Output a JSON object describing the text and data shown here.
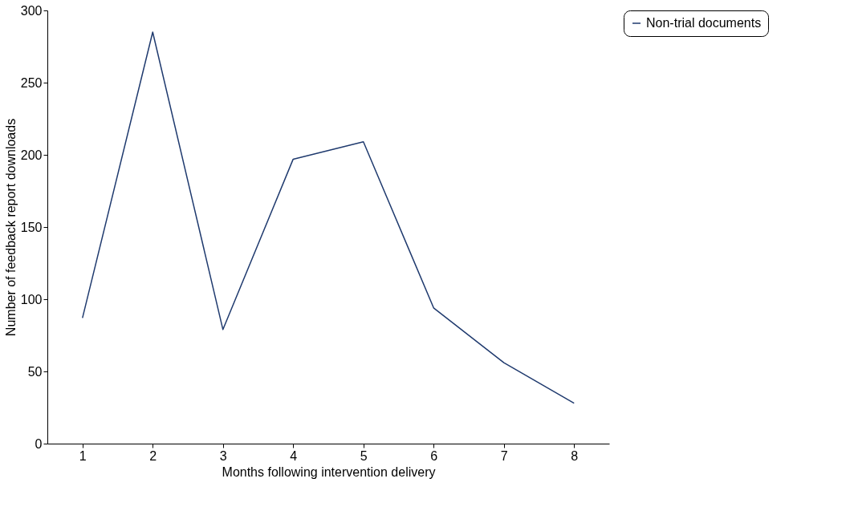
{
  "chart_data": {
    "type": "line",
    "xlabel": "Months following intervention delivery",
    "ylabel": "Number of feedback report downloads",
    "categories": [
      "1",
      "2",
      "3",
      "4",
      "5",
      "6",
      "7",
      "8"
    ],
    "series": [
      {
        "name": "Non-trial documents",
        "color": "#1f3a6e",
        "values": [
          87,
          285,
          79,
          197,
          209,
          94,
          56,
          28
        ]
      }
    ],
    "ylim": [
      0,
      300
    ],
    "yticks": [
      0,
      50,
      100,
      150,
      200,
      250,
      300
    ],
    "grid": false,
    "legend": "right",
    "marker": "none",
    "line_style": "solid"
  }
}
